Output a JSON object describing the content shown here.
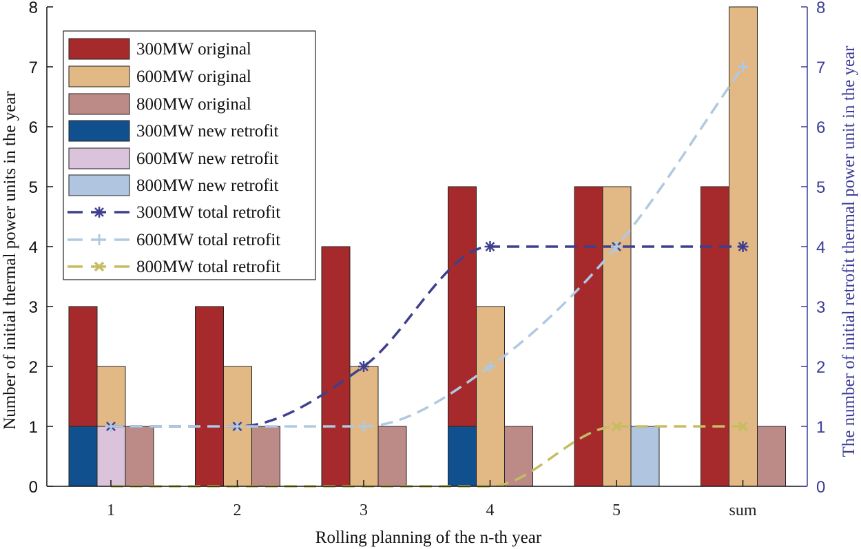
{
  "chart_data": {
    "type": "bar",
    "categories": [
      "1",
      "2",
      "3",
      "4",
      "5",
      "sum"
    ],
    "xlabel": "Rolling planning of the n-th year",
    "ylabel": "Number of initial thermal power units in the year",
    "ylabel_right": "The number of initial retrofit thermal power unit in the year",
    "ylim": [
      0,
      8
    ],
    "ylim_right": [
      0,
      8
    ],
    "yticks": [
      0,
      1,
      2,
      3,
      4,
      5,
      6,
      7,
      8
    ],
    "bar_series": [
      {
        "name": "300MW original",
        "color": "#a62a2b",
        "values": [
          3,
          3,
          4,
          5,
          5,
          5
        ]
      },
      {
        "name": "600MW original",
        "color": "#e2b984",
        "values": [
          2,
          2,
          2,
          3,
          5,
          8
        ]
      },
      {
        "name": "800MW original",
        "color": "#bc8b88",
        "values": [
          1,
          1,
          1,
          1,
          0,
          1
        ]
      },
      {
        "name": "300MW new retrofit",
        "color": "#11508f",
        "values": [
          1,
          0,
          0,
          1,
          0,
          0
        ]
      },
      {
        "name": "600MW new retrofit",
        "color": "#dbc3db",
        "values": [
          1,
          0,
          0,
          0,
          0,
          0
        ]
      },
      {
        "name": "800MW new retrofit",
        "color": "#afc5e0",
        "values": [
          0,
          0,
          0,
          0,
          1,
          0
        ]
      }
    ],
    "line_series": [
      {
        "name": "300MW total retrofit",
        "color": "#3f3f8f",
        "marker": "*",
        "values": [
          1,
          1,
          2,
          4,
          4,
          4
        ]
      },
      {
        "name": "600MW total retrofit",
        "color": "#b0c8e2",
        "marker": "+",
        "values": [
          1,
          1,
          1,
          2,
          4,
          7
        ]
      },
      {
        "name": "800MW total retrofit",
        "color": "#c6bd62",
        "marker": "x",
        "values": [
          0,
          0,
          0,
          0,
          1,
          1
        ]
      }
    ],
    "legend_position": "top-left"
  }
}
